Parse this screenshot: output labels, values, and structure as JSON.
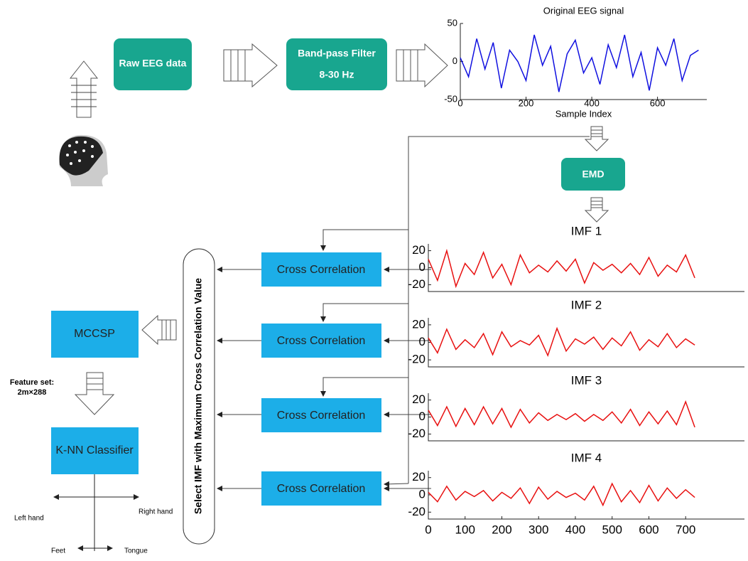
{
  "blocks": {
    "raw_eeg": "Raw EEG data",
    "filter_title": "Band-pass Filter",
    "filter_band": "8-30 Hz",
    "emd": "EMD",
    "cross_correlation": [
      "Cross Correlation",
      "Cross Correlation",
      "Cross Correlation",
      "Cross Correlation"
    ],
    "select": "Select IMF with Maximum Cross Correlation Value",
    "mccsp": "MCCSP",
    "feature_set": "Feature set:",
    "feature_size": "2m×288",
    "knn": "K-NN Classifier",
    "classes": {
      "left": "Left hand",
      "right": "Right hand",
      "feet": "Feet",
      "tongue": "Tongue"
    }
  },
  "signals": {
    "x": [
      0,
      25,
      50,
      75,
      100,
      125,
      150,
      175,
      200,
      225,
      250,
      275,
      300,
      325,
      350,
      375,
      400,
      425,
      450,
      475,
      500,
      525,
      550,
      575,
      600,
      625,
      650,
      675,
      700,
      725
    ],
    "original": {
      "title": "Original EEG signal",
      "xlabel": "Sample Index",
      "xlim": [
        0,
        750
      ],
      "ylim": [
        -50,
        50
      ],
      "xticks": [
        0,
        200,
        400,
        600
      ],
      "yticks": [
        50,
        0,
        -50
      ],
      "color": "#1010e0",
      "values": [
        5,
        -20,
        30,
        -10,
        25,
        -35,
        15,
        0,
        -25,
        35,
        -5,
        20,
        -40,
        10,
        28,
        -15,
        5,
        -30,
        22,
        -8,
        35,
        -20,
        12,
        -38,
        18,
        -5,
        30,
        -25,
        8,
        15
      ]
    },
    "imfs": [
      {
        "title": "IMF 1",
        "xlim": [
          0,
          860
        ],
        "ylim": [
          -28,
          28
        ],
        "yticks": [
          20,
          0,
          -20
        ],
        "color": "#e81010",
        "values": [
          10,
          -15,
          20,
          -22,
          5,
          -8,
          18,
          -12,
          4,
          -20,
          15,
          -6,
          3,
          -5,
          8,
          -4,
          10,
          -18,
          6,
          -3,
          4,
          -6,
          5,
          -8,
          12,
          -10,
          3,
          -5,
          15,
          -12
        ]
      },
      {
        "title": "IMF 2",
        "xlim": [
          0,
          860
        ],
        "ylim": [
          -28,
          28
        ],
        "yticks": [
          20,
          0,
          -20
        ],
        "color": "#e81010",
        "values": [
          5,
          -12,
          15,
          -8,
          3,
          -6,
          10,
          -14,
          12,
          -5,
          2,
          -3,
          8,
          -15,
          16,
          -10,
          4,
          -2,
          6,
          -8,
          5,
          -4,
          12,
          -9,
          3,
          -5,
          10,
          -6,
          4,
          -3
        ]
      },
      {
        "title": "IMF 3",
        "xlim": [
          0,
          860
        ],
        "ylim": [
          -28,
          28
        ],
        "yticks": [
          20,
          0,
          -20
        ],
        "color": "#e81010",
        "values": [
          8,
          -10,
          12,
          -11,
          10,
          -9,
          12,
          -8,
          10,
          -12,
          9,
          -7,
          5,
          -4,
          3,
          -3,
          4,
          -5,
          3,
          -4,
          6,
          -7,
          9,
          -10,
          6,
          -8,
          7,
          -9,
          18,
          -12
        ]
      },
      {
        "title": "IMF 4",
        "xlim": [
          0,
          860
        ],
        "ylim": [
          -28,
          28
        ],
        "yticks": [
          20,
          0,
          -20
        ],
        "xticks": [
          0,
          100,
          200,
          300,
          400,
          500,
          600,
          700
        ],
        "color": "#e81010",
        "values": [
          3,
          -8,
          10,
          -6,
          4,
          -2,
          5,
          -7,
          3,
          -4,
          8,
          -10,
          9,
          -5,
          4,
          -3,
          2,
          -6,
          10,
          -12,
          13,
          -8,
          5,
          -9,
          11,
          -7,
          8,
          -4,
          6,
          -3
        ]
      }
    ]
  }
}
